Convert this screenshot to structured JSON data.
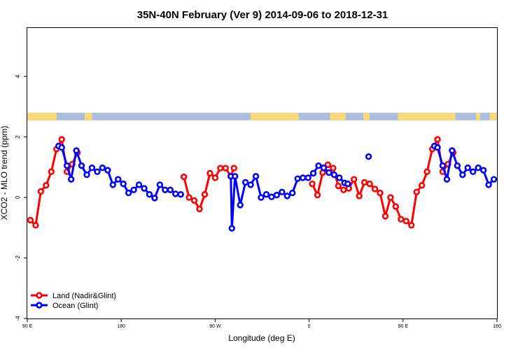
{
  "chart_data": {
    "type": "line",
    "title": "35N-40N February (Ver 9)   2014-09-06 to 2018-12-31",
    "xlabel": "Longitude (deg E)",
    "ylabel": "XCO2 - MLO trend (ppm)",
    "xlim": [
      90,
      540
    ],
    "ylim": [
      -4.0,
      5.6
    ],
    "x_ticks": [
      {
        "value": 90,
        "label": "90 E"
      },
      {
        "value": 180,
        "label": "180"
      },
      {
        "value": 270,
        "label": "90 W"
      },
      {
        "value": 360,
        "label": "0"
      },
      {
        "value": 450,
        "label": "90 E"
      },
      {
        "value": 540,
        "label": "180"
      }
    ],
    "y_ticks": [
      {
        "value": -4,
        "label": "-4"
      },
      {
        "value": -2,
        "label": "-2"
      },
      {
        "value": 0,
        "label": "0"
      },
      {
        "value": 2,
        "label": "2"
      },
      {
        "value": 4,
        "label": "4"
      }
    ],
    "grid": false,
    "legend_position": "bottom-left",
    "land_ocean_strip": {
      "y_range": [
        2.55,
        2.8
      ],
      "ocean_color": "#a9bfdd",
      "land_color": "#fbd87b",
      "land_ranges": [
        [
          90,
          118
        ],
        [
          145,
          152
        ],
        [
          148,
          149
        ],
        [
          304,
          350
        ],
        [
          380,
          395
        ],
        [
          412,
          418
        ],
        [
          445,
          500
        ],
        [
          520,
          524
        ],
        [
          533,
          540
        ]
      ]
    },
    "series": [
      {
        "name": "Land (Nadir&Glint)",
        "color": "#ff0000",
        "points": [
          {
            "x": 93,
            "y": -0.75
          },
          {
            "x": 98,
            "y": -0.92
          },
          {
            "x": 103,
            "y": 0.2
          },
          {
            "x": 108,
            "y": 0.4
          },
          {
            "x": 113,
            "y": 0.85
          },
          {
            "x": 118,
            "y": 1.6
          },
          {
            "x": 123,
            "y": 1.92
          },
          {
            "x": 128,
            "y": 0.85
          },
          {
            "x": 133,
            "y": 1.1
          },
          {
            "x": 138,
            "y": 1.48
          },
          null,
          {
            "x": 240,
            "y": 0.68
          },
          {
            "x": 245,
            "y": 0.0
          },
          {
            "x": 250,
            "y": -0.1
          },
          {
            "x": 255,
            "y": -0.38
          },
          {
            "x": 260,
            "y": 0.1
          },
          {
            "x": 265,
            "y": 0.8
          },
          {
            "x": 270,
            "y": 0.65
          },
          {
            "x": 275,
            "y": 0.97
          },
          {
            "x": 280,
            "y": 0.97
          },
          {
            "x": 285,
            "y": 0.7
          },
          {
            "x": 288,
            "y": 0.97
          },
          null,
          {
            "x": 363,
            "y": 0.45
          },
          {
            "x": 368,
            "y": 0.08
          },
          {
            "x": 373,
            "y": 0.82
          },
          {
            "x": 378,
            "y": 1.08
          },
          {
            "x": 383,
            "y": 0.97
          },
          {
            "x": 388,
            "y": 0.38
          },
          {
            "x": 393,
            "y": 0.25
          },
          {
            "x": 398,
            "y": 0.3
          },
          {
            "x": 403,
            "y": 0.6
          },
          {
            "x": 408,
            "y": 0.05
          },
          {
            "x": 413,
            "y": 0.5
          },
          {
            "x": 418,
            "y": 0.45
          },
          {
            "x": 423,
            "y": 0.28
          },
          {
            "x": 428,
            "y": 0.15
          },
          {
            "x": 433,
            "y": -0.62
          },
          {
            "x": 438,
            "y": 0.0
          },
          {
            "x": 443,
            "y": -0.3
          },
          {
            "x": 448,
            "y": -0.72
          },
          {
            "x": 453,
            "y": -0.78
          },
          {
            "x": 458,
            "y": -0.92
          },
          {
            "x": 463,
            "y": 0.18
          },
          {
            "x": 468,
            "y": 0.4
          },
          {
            "x": 473,
            "y": 0.85
          },
          {
            "x": 478,
            "y": 1.6
          },
          {
            "x": 483,
            "y": 1.92
          },
          {
            "x": 488,
            "y": 0.85
          },
          {
            "x": 493,
            "y": 1.1
          },
          {
            "x": 498,
            "y": 1.48
          }
        ]
      },
      {
        "name": "Ocean (Glint)",
        "color": "#0000ff",
        "points": [
          {
            "x": 120,
            "y": 1.7
          },
          {
            "x": 123,
            "y": 1.65
          },
          {
            "x": 128,
            "y": 1.05
          },
          {
            "x": 132,
            "y": 0.6
          },
          {
            "x": 137,
            "y": 1.55
          },
          {
            "x": 142,
            "y": 1.05
          },
          {
            "x": 147,
            "y": 0.75
          },
          {
            "x": 152,
            "y": 0.98
          },
          {
            "x": 157,
            "y": 0.85
          },
          {
            "x": 162,
            "y": 0.98
          },
          {
            "x": 167,
            "y": 0.9
          },
          {
            "x": 172,
            "y": 0.42
          },
          {
            "x": 177,
            "y": 0.6
          },
          {
            "x": 182,
            "y": 0.45
          },
          {
            "x": 187,
            "y": 0.15
          },
          {
            "x": 192,
            "y": 0.25
          },
          {
            "x": 197,
            "y": 0.42
          },
          {
            "x": 202,
            "y": 0.3
          },
          {
            "x": 207,
            "y": 0.1
          },
          {
            "x": 212,
            "y": -0.02
          },
          {
            "x": 217,
            "y": 0.42
          },
          {
            "x": 222,
            "y": 0.25
          },
          {
            "x": 227,
            "y": 0.25
          },
          {
            "x": 232,
            "y": 0.12
          },
          {
            "x": 237,
            "y": 0.1
          },
          null,
          {
            "x": 285,
            "y": 0.7
          },
          {
            "x": 286,
            "y": -1.02
          },
          {
            "x": 289,
            "y": 0.7
          },
          {
            "x": 294,
            "y": -0.25
          },
          {
            "x": 299,
            "y": 0.5
          },
          {
            "x": 304,
            "y": 0.42
          },
          {
            "x": 309,
            "y": 0.7
          },
          {
            "x": 314,
            "y": 0.0
          },
          {
            "x": 319,
            "y": 0.1
          },
          {
            "x": 324,
            "y": 0.02
          },
          {
            "x": 329,
            "y": 0.08
          },
          {
            "x": 334,
            "y": 0.18
          },
          {
            "x": 339,
            "y": 0.05
          },
          {
            "x": 344,
            "y": 0.15
          },
          {
            "x": 349,
            "y": 0.62
          },
          {
            "x": 354,
            "y": 0.65
          },
          {
            "x": 359,
            "y": 0.65
          },
          {
            "x": 364,
            "y": 0.8
          },
          {
            "x": 369,
            "y": 1.05
          },
          {
            "x": 374,
            "y": 0.98
          },
          {
            "x": 379,
            "y": 0.82
          },
          {
            "x": 384,
            "y": 0.75
          },
          {
            "x": 389,
            "y": 0.65
          },
          {
            "x": 394,
            "y": 0.48
          },
          {
            "x": 397,
            "y": 0.45
          },
          null,
          {
            "x": 417,
            "y": 1.35
          },
          null,
          {
            "x": 480,
            "y": 1.7
          },
          {
            "x": 483,
            "y": 1.65
          },
          {
            "x": 488,
            "y": 1.05
          },
          {
            "x": 492,
            "y": 0.6
          },
          {
            "x": 497,
            "y": 1.55
          },
          {
            "x": 502,
            "y": 1.05
          },
          {
            "x": 507,
            "y": 0.75
          },
          {
            "x": 512,
            "y": 0.98
          },
          {
            "x": 517,
            "y": 0.85
          },
          {
            "x": 522,
            "y": 0.98
          },
          {
            "x": 527,
            "y": 0.9
          },
          {
            "x": 532,
            "y": 0.42
          },
          {
            "x": 537,
            "y": 0.6
          }
        ]
      }
    ]
  }
}
